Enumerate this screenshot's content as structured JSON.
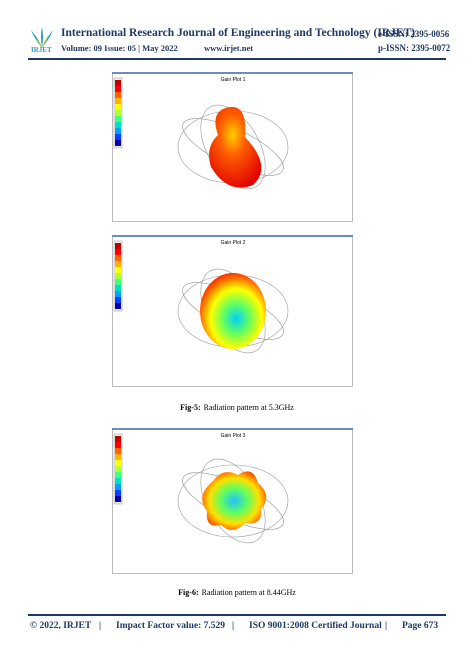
{
  "header": {
    "logo": "IRJET",
    "title": "International Research Journal of Engineering and Technology (IRJET)",
    "e_issn": "e-ISSN: 2395-0056",
    "volume": "Volume: 09 Issue: 05 | May 2022",
    "website": "www.irjet.net",
    "p_issn": "p-ISSN: 2395-0072"
  },
  "figures": [
    {
      "plots": [
        {
          "title": "Gain Plot 1"
        },
        {
          "title": "Gain Plot 2"
        }
      ],
      "caption": {
        "label": "Fig-5:",
        "text": "Radiation pattern at 5.3GHz"
      }
    },
    {
      "plots": [
        {
          "title": "Gain Plot 3"
        }
      ],
      "caption": {
        "label": "Fig-6:",
        "text": "Radiation pattern at 8.44GHz"
      }
    }
  ],
  "footer": {
    "copyright": "© 2022, IRJET",
    "separators": [
      "|",
      "|",
      "|"
    ],
    "impact": "Impact Factor value: 7.529",
    "iso": "ISO 9001:2008 Certified Journal",
    "page": "Page 673"
  }
}
